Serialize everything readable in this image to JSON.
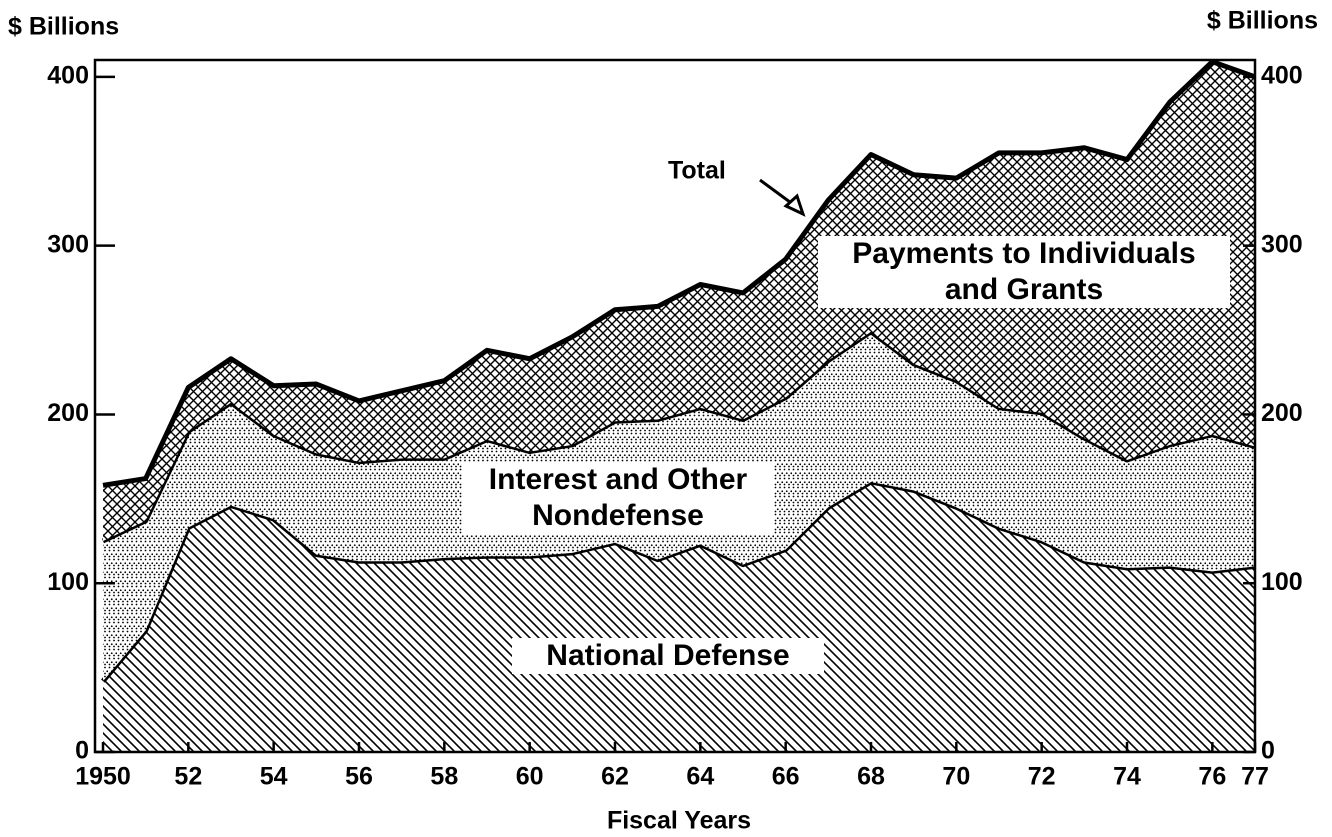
{
  "chart_data": {
    "type": "stacked-area",
    "ylabel": "$ Billions",
    "y2label": "$ Billions",
    "xlabel": "Fiscal Years",
    "annotation": "Total",
    "x": [
      1950,
      1951,
      1952,
      1953,
      1954,
      1955,
      1956,
      1957,
      1958,
      1959,
      1960,
      1961,
      1962,
      1963,
      1964,
      1965,
      1966,
      1967,
      1968,
      1969,
      1970,
      1971,
      1972,
      1973,
      1974,
      1975,
      1976,
      1977
    ],
    "series": [
      {
        "name": "National Defense",
        "color": "#000000",
        "values": [
          42,
          72,
          133,
          146,
          138,
          117,
          113,
          113,
          115,
          116,
          116,
          118,
          124,
          114,
          123,
          111,
          120,
          145,
          160,
          155,
          145,
          133,
          125,
          113,
          109,
          110,
          107,
          110
        ]
      },
      {
        "name": "Interest and Other Nondefense",
        "color": "#000000",
        "values": [
          83,
          65,
          57,
          61,
          50,
          60,
          59,
          61,
          59,
          69,
          62,
          64,
          72,
          83,
          81,
          86,
          90,
          87,
          89,
          75,
          75,
          71,
          76,
          73,
          64,
          72,
          81,
          71
        ]
      },
      {
        "name": "Payments to Individuals and Grants",
        "color": "#000000",
        "values": [
          33,
          25,
          26,
          26,
          29,
          41,
          36,
          40,
          46,
          53,
          55,
          64,
          66,
          67,
          73,
          75,
          82,
          95,
          105,
          112,
          120,
          151,
          154,
          172,
          178,
          203,
          221,
          219
        ]
      }
    ],
    "xlim": [
      1950,
      1977
    ],
    "xticks": [
      1950,
      {
        "value": 1952,
        "label": "52"
      },
      {
        "value": 1954,
        "label": "54"
      },
      {
        "value": 1956,
        "label": "56"
      },
      {
        "value": 1958,
        "label": "58"
      },
      {
        "value": 1960,
        "label": "60"
      },
      {
        "value": 1962,
        "label": "62"
      },
      {
        "value": 1964,
        "label": "64"
      },
      {
        "value": 1966,
        "label": "66"
      },
      {
        "value": 1968,
        "label": "68"
      },
      {
        "value": 1970,
        "label": "70"
      },
      {
        "value": 1972,
        "label": "72"
      },
      {
        "value": 1974,
        "label": "74"
      },
      {
        "value": 1976,
        "label": "76"
      },
      {
        "value": 1977,
        "label": "77"
      }
    ],
    "ylim": [
      0,
      410
    ],
    "yticks": [
      0,
      100,
      200,
      300,
      400
    ],
    "y2lim": [
      0,
      410
    ],
    "y2ticks": [
      0,
      100,
      200,
      300,
      400
    ],
    "grid": false
  }
}
